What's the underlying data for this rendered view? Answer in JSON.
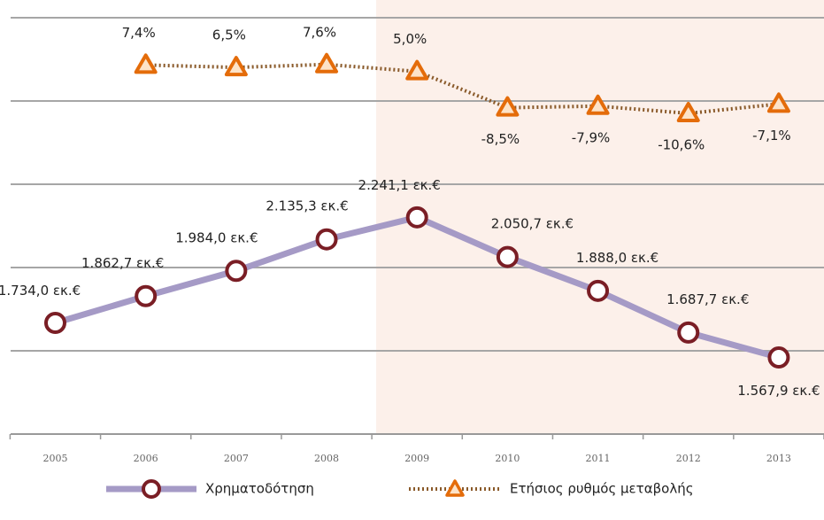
{
  "chart_data": {
    "type": "line",
    "categories": [
      "2005",
      "2006",
      "2007",
      "2008",
      "2009",
      "2010",
      "2011",
      "2012",
      "2013"
    ],
    "series": [
      {
        "name": "Χρηματοδότηση",
        "color": "#a59ac6",
        "marker_color": "#7a1e25",
        "values": [
          1734.0,
          1862.7,
          1984.0,
          2135.3,
          2241.1,
          2050.7,
          1888.0,
          1687.7,
          1567.9
        ],
        "value_labels": [
          "1.734,0 εκ.€",
          "1.862,7 εκ.€",
          "1.984,0 εκ.€",
          "2.135,3 εκ.€",
          "2.241,1 εκ.€",
          "2.050,7 εκ.€",
          "1.888,0 εκ.€",
          "1.687,7 εκ.€",
          "1.567,9 εκ.€"
        ]
      },
      {
        "name": "Ετήσιος ρυθμός μεταβολής",
        "color": "#8a5a2a",
        "marker_color": "#e46c0a",
        "axis": "y2",
        "values": [
          null,
          7.4,
          6.5,
          7.6,
          5.0,
          -8.5,
          -7.9,
          -10.6,
          -7.1
        ],
        "value_labels": [
          null,
          "7,4%",
          "6,5%",
          "7,6%",
          "5,0%",
          "-8,5%",
          "-7,9%",
          "-10,6%",
          "-7,1%"
        ]
      }
    ],
    "ylim": [
      1200,
      3200
    ],
    "yticks": [
      1200,
      1600,
      2000,
      2400,
      2800,
      3200
    ],
    "y2lim": [
      -130,
      25
    ],
    "grid": true,
    "legend": "bottom"
  }
}
